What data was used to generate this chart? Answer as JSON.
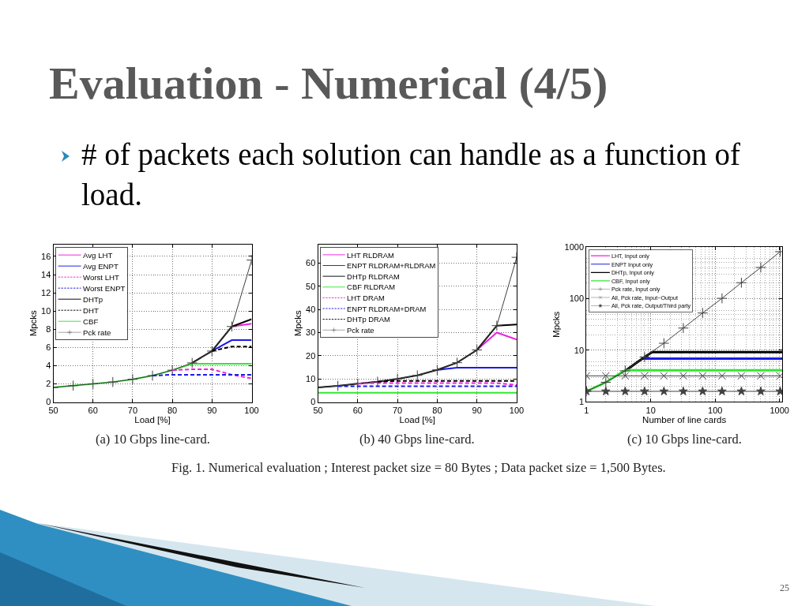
{
  "chart_data": [
    {
      "type": "other",
      "title": "Evaluation - Numerical (4/5)",
      "subtitle": "# of packets each solution can handle as a function of load.",
      "annotations": [
        "Fig. 1. Numerical evaluation ; Interest packet size = 80 Bytes ; Data packet size = 1,500 Bytes.",
        "25"
      ]
    },
    {
      "type": "line",
      "xlabel": "Load [%]",
      "ylabel": "Mpcks",
      "x": [
        50,
        55,
        60,
        65,
        70,
        75,
        80,
        85,
        90,
        95,
        100
      ],
      "xlim": [
        50,
        100
      ],
      "xticks": [
        50,
        60,
        70,
        80,
        90,
        100
      ],
      "ylim": [
        0,
        17.3
      ],
      "yticks": [
        0,
        2,
        4,
        6,
        8,
        10,
        12,
        14,
        16
      ],
      "grid": true,
      "legend": "top left",
      "annotations": [
        "(a) 10 Gbps line-card."
      ],
      "series": [
        {
          "name": "Avg LHT",
          "color": "#ee22dd",
          "values": [
            null,
            null,
            null,
            null,
            null,
            null,
            null,
            null,
            null,
            8.3,
            8.6
          ]
        },
        {
          "name": "Avg ENPT",
          "color": "#1a1ae6",
          "values": [
            null,
            null,
            null,
            null,
            null,
            null,
            null,
            null,
            5.6,
            6.8,
            6.8
          ]
        },
        {
          "name": "Worst LHT",
          "color": "#ee22dd",
          "line_style": "dashed",
          "values": [
            null,
            null,
            null,
            null,
            null,
            null,
            3.5,
            3.6,
            3.6,
            3.0,
            2.6
          ]
        },
        {
          "name": "Worst ENPT",
          "color": "#1a1ae6",
          "line_style": "dashed",
          "values": [
            null,
            null,
            null,
            null,
            null,
            2.9,
            3.0,
            3.0,
            3.0,
            3.0,
            3.0
          ]
        },
        {
          "name": "DHTp",
          "color": "#000000",
          "values": [
            null,
            null,
            null,
            null,
            null,
            null,
            null,
            4.3,
            5.6,
            8.3,
            9.1
          ]
        },
        {
          "name": "DHT",
          "color": "#000000",
          "line_style": "dashed",
          "values": [
            null,
            null,
            null,
            null,
            null,
            null,
            null,
            null,
            5.6,
            6.1,
            6.1
          ]
        },
        {
          "name": "CBF",
          "color": "#33e633",
          "values": [
            1.6,
            1.8,
            2.0,
            2.2,
            2.5,
            2.9,
            3.5,
            4.2,
            4.2,
            4.2,
            4.2
          ]
        },
        {
          "name": "Pck rate",
          "color": "#404040",
          "marker": "cross",
          "values": [
            1.6,
            1.8,
            2.0,
            2.2,
            2.5,
            2.9,
            3.5,
            4.3,
            5.6,
            8.3,
            15.6
          ]
        }
      ]
    },
    {
      "type": "line",
      "xlabel": "Load [%]",
      "ylabel": "Mpcks",
      "x": [
        50,
        55,
        60,
        65,
        70,
        75,
        80,
        85,
        90,
        95,
        100
      ],
      "xlim": [
        50,
        100
      ],
      "xticks": [
        50,
        60,
        70,
        80,
        90,
        100
      ],
      "ylim": [
        0,
        68
      ],
      "yticks": [
        0,
        10,
        20,
        30,
        40,
        50,
        60
      ],
      "grid": true,
      "legend": "top left",
      "annotations": [
        "(b) 40 Gbps line-card."
      ],
      "series": [
        {
          "name": "LHT RLDRAM",
          "color": "#ee22dd",
          "values": [
            null,
            null,
            null,
            null,
            null,
            null,
            null,
            null,
            22.5,
            30,
            27
          ]
        },
        {
          "name": "ENPT RLDRAM+RLDRAM",
          "color": "#1a1ae6",
          "values": [
            null,
            null,
            null,
            null,
            null,
            null,
            13.9,
            14.8,
            14.8,
            14.8,
            14.8
          ]
        },
        {
          "name": "DHTp RLDRAM",
          "color": "#000000",
          "values": [
            6.3,
            7.0,
            7.9,
            8.8,
            10.0,
            11.5,
            13.9,
            17.0,
            22.5,
            33.0,
            33.5
          ]
        },
        {
          "name": "CBF RLDRAM",
          "color": "#33e633",
          "values": [
            4.0,
            4.0,
            4.0,
            4.0,
            4.0,
            4.0,
            4.0,
            4.0,
            4.0,
            4.0,
            4.0
          ]
        },
        {
          "name": "LHT DRAM",
          "color": "#ee22dd",
          "line_style": "dashed",
          "values": [
            null,
            null,
            7.9,
            8.2,
            8.2,
            8.2,
            8.2,
            8.2,
            8.2,
            8.2,
            7.4
          ]
        },
        {
          "name": "ENPT RLDRAM+DRAM",
          "color": "#1a1ae6",
          "line_style": "dashed",
          "values": [
            null,
            6.8,
            6.8,
            6.8,
            6.8,
            6.8,
            6.8,
            6.8,
            6.8,
            6.8,
            6.8
          ]
        },
        {
          "name": "DHTp DRAM",
          "color": "#000000",
          "line_style": "dashed",
          "values": [
            null,
            null,
            null,
            8.8,
            9.1,
            9.1,
            9.1,
            9.1,
            9.1,
            9.1,
            9.1
          ]
        },
        {
          "name": "Pck rate",
          "color": "#404040",
          "marker": "cross",
          "values": [
            6.3,
            7.0,
            7.9,
            8.8,
            10.0,
            11.5,
            13.9,
            17.0,
            22.5,
            33.0,
            62.5
          ]
        }
      ]
    },
    {
      "type": "line",
      "xlabel": "Number of line cards",
      "ylabel": "Mpcks",
      "log": "xy",
      "x": [
        1,
        2,
        4,
        8,
        16,
        32,
        64,
        128,
        256,
        512,
        1024
      ],
      "xlim": [
        1,
        1100
      ],
      "xticks": [
        1,
        10,
        100,
        1000
      ],
      "ylim": [
        1,
        1000
      ],
      "yticks": [
        1,
        10,
        100,
        1000
      ],
      "grid": true,
      "legend": "top left",
      "annotations": [
        "(c) 10 Gbps line-card."
      ],
      "series": [
        {
          "name": "LHT, Input only",
          "color": "#ee22dd",
          "values": [
            null,
            null,
            null,
            null,
            null,
            null,
            null,
            null,
            null,
            null,
            null
          ]
        },
        {
          "name": "ENPT Input only",
          "color": "#1a1ae6",
          "x": [
            7.4,
            1100
          ],
          "values": [
            6.9,
            6.9
          ]
        },
        {
          "name": "DHTp, Input only",
          "color": "#000000",
          "x": [
            4,
            8,
            10.5,
            1100
          ],
          "values": [
            4.0,
            7.4,
            9.2,
            9.2
          ]
        },
        {
          "name": "CBF, Input only",
          "color": "#33e633",
          "x": [
            1,
            2,
            4,
            1100
          ],
          "values": [
            1.6,
            2.4,
            4.1,
            4.1
          ]
        },
        {
          "name": "Pck rate, Input only",
          "color": "#404040",
          "marker": "cross",
          "values": [
            1.6,
            2.4,
            4.0,
            7.4,
            13.7,
            27,
            53,
            102,
            205,
            405,
            820
          ]
        },
        {
          "name": "All, Pck rate, Input−Output",
          "color": "#404040",
          "marker": "x",
          "values": [
            3.2,
            3.2,
            3.2,
            3.2,
            3.2,
            3.2,
            3.2,
            3.2,
            3.2,
            3.2,
            3.2
          ]
        },
        {
          "name": "All, Pck rate, Output/Third party",
          "color": "#404040",
          "marker": "star",
          "values": [
            1.6,
            1.6,
            1.6,
            1.6,
            1.6,
            1.6,
            1.6,
            1.6,
            1.6,
            1.6,
            1.6
          ]
        }
      ]
    }
  ]
}
